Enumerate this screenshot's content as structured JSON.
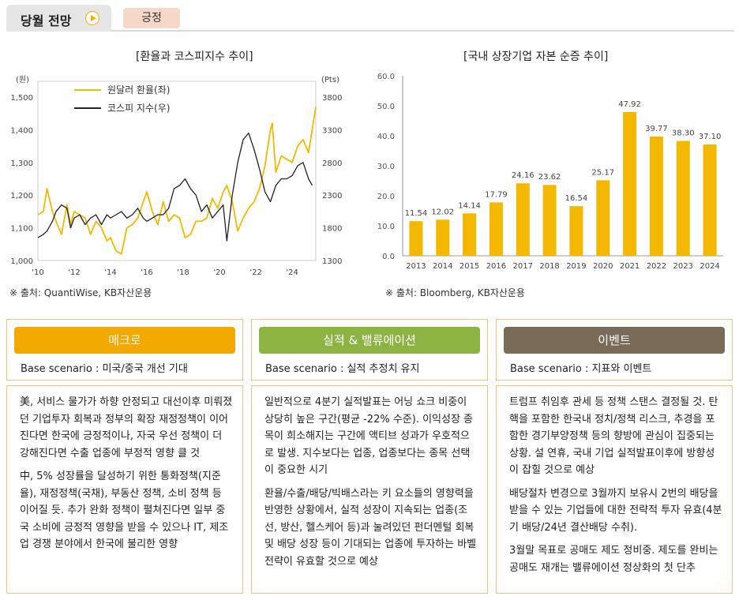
{
  "tabs": {
    "main_label": "당월 전망",
    "tag_label": "긍정"
  },
  "left_chart": {
    "title": "[환율과 코스피지수 추이]",
    "left_unit": "(원)",
    "right_unit": "(Pts)",
    "source": "※ 출처: QuantiWise, KB자산운용"
  },
  "right_chart": {
    "title": "[국내 상장기업 자본 순증 추이]",
    "source": "※ 출처: Bloomberg, KB자산운용"
  },
  "chart_data": [
    {
      "type": "line",
      "title": "[환율과 코스피지수 추이]",
      "x_ticks": [
        "'10",
        "'12",
        "'14",
        "'16",
        "'18",
        "'20",
        "'22",
        "'24"
      ],
      "x_range": [
        2010,
        2025.3
      ],
      "y_left": {
        "unit": "(원)",
        "range": [
          1000,
          1500
        ],
        "ticks": [
          "1,000",
          "1,100",
          "1,200",
          "1,300",
          "1,400",
          "1,500"
        ]
      },
      "y_right": {
        "unit": "(Pts)",
        "range": [
          1300,
          3800
        ],
        "ticks": [
          "1300",
          "1800",
          "2300",
          "2800",
          "3300",
          "3800"
        ]
      },
      "grid": false,
      "legend": "top-left",
      "series": [
        {
          "name": "원달러 환율(좌)",
          "axis": "left",
          "color": "#f5b800",
          "x": [
            2010.0,
            2010.3,
            2010.5,
            2010.8,
            2011.0,
            2011.3,
            2011.6,
            2011.8,
            2012.0,
            2012.3,
            2012.6,
            2012.9,
            2013.2,
            2013.5,
            2013.8,
            2014.0,
            2014.3,
            2014.6,
            2014.9,
            2015.2,
            2015.5,
            2015.8,
            2016.0,
            2016.3,
            2016.6,
            2016.9,
            2017.2,
            2017.5,
            2017.8,
            2018.1,
            2018.4,
            2018.7,
            2019.0,
            2019.3,
            2019.6,
            2019.9,
            2020.2,
            2020.4,
            2020.7,
            2021.0,
            2021.3,
            2021.6,
            2021.9,
            2022.2,
            2022.5,
            2022.8,
            2022.9,
            2023.1,
            2023.4,
            2023.7,
            2024.0,
            2024.3,
            2024.6,
            2024.9,
            2025.1,
            2025.3
          ],
          "values": [
            1140,
            1150,
            1220,
            1150,
            1120,
            1080,
            1170,
            1110,
            1150,
            1140,
            1130,
            1080,
            1120,
            1100,
            1060,
            1070,
            1030,
            1020,
            1100,
            1110,
            1130,
            1180,
            1210,
            1150,
            1110,
            1180,
            1120,
            1140,
            1130,
            1070,
            1080,
            1120,
            1120,
            1130,
            1190,
            1160,
            1210,
            1230,
            1180,
            1090,
            1130,
            1160,
            1180,
            1220,
            1290,
            1400,
            1420,
            1270,
            1320,
            1310,
            1300,
            1350,
            1370,
            1330,
            1400,
            1470
          ]
        },
        {
          "name": "코스피 지수(우)",
          "axis": "right",
          "color": "#222222",
          "x": [
            2010.0,
            2010.3,
            2010.5,
            2010.8,
            2011.0,
            2011.3,
            2011.6,
            2011.8,
            2012.0,
            2012.3,
            2012.6,
            2012.9,
            2013.2,
            2013.5,
            2013.8,
            2014.0,
            2014.3,
            2014.6,
            2014.9,
            2015.2,
            2015.5,
            2015.8,
            2016.0,
            2016.3,
            2016.6,
            2016.9,
            2017.2,
            2017.5,
            2017.8,
            2018.1,
            2018.4,
            2018.7,
            2019.0,
            2019.3,
            2019.6,
            2019.9,
            2020.2,
            2020.4,
            2020.7,
            2021.0,
            2021.3,
            2021.6,
            2021.9,
            2022.2,
            2022.5,
            2022.8,
            2023.1,
            2023.4,
            2023.7,
            2024.0,
            2024.3,
            2024.6,
            2024.9,
            2025.1
          ],
          "values": [
            1650,
            1700,
            1750,
            1900,
            2050,
            2150,
            2100,
            1800,
            1950,
            2000,
            1850,
            1950,
            2000,
            1850,
            2000,
            1950,
            2000,
            2050,
            1950,
            2000,
            2100,
            1950,
            1900,
            1950,
            2000,
            2000,
            2100,
            2400,
            2450,
            2550,
            2400,
            2300,
            2050,
            2150,
            1950,
            2050,
            2150,
            1600,
            2300,
            2800,
            3150,
            3250,
            3000,
            2700,
            2350,
            2200,
            2450,
            2550,
            2550,
            2600,
            2750,
            2800,
            2550,
            2450
          ]
        }
      ]
    },
    {
      "type": "bar",
      "title": "[국내 상장기업 자본 순증 추이]",
      "categories": [
        "2013",
        "2014",
        "2015",
        "2016",
        "2017",
        "2018",
        "2019",
        "2020",
        "2021",
        "2022",
        "2023",
        "2024"
      ],
      "values": [
        11.54,
        12.02,
        14.14,
        17.79,
        24.16,
        23.62,
        16.54,
        25.17,
        47.92,
        39.77,
        38.3,
        37.1
      ],
      "labels": [
        "11.54",
        "12.02",
        "14.14",
        "17.79",
        "24.16",
        "23.62",
        "16.54",
        "25.17",
        "47.92",
        "39.77",
        "38.30",
        "37.10"
      ],
      "ylim": [
        0,
        60
      ],
      "y_ticks": [
        "0.0",
        "10.0",
        "20.0",
        "30.0",
        "40.0",
        "50.0",
        "60.0"
      ],
      "color": "#f5b800",
      "grid": false
    }
  ],
  "cards": [
    {
      "title": "매크로",
      "color": "#f2a900",
      "scenario": "Base scenario : 미국/중국 개선 기대",
      "paragraphs": [
        "美, 서비스 물가가 하향 안정되고 대선이후 미뤄졌던 기업투자 회복과 정부의 확장 재정정책이 이어진다면 한국에 긍정적이나, 자국 우선 정책이 더 강해진다면 수출 업종에 부정적 영향 클 것",
        "中, 5% 성장률을 달성하기 위한 통화정책(지준율), 재정정책(국채), 부동산 정책, 소비 정책 등 이어질 듯. 추가 완화 정책이 펼쳐진다면 일부 중국 소비에 긍정적 영향을 받을 수 있으나 IT, 제조업 경쟁 분야에서 한국에 불리한 영향"
      ]
    },
    {
      "title": "실적 & 밸류에이션",
      "color": "#8db443",
      "scenario": "Base scenario : 실적 추정치 유지",
      "paragraphs": [
        "일반적으로 4분기 실적발표는 어닝 쇼크 비중이 상당히 높은 구간(평균 -22% 수준). 이익성장 종목이 희소해지는 구간에 액티브 성과가 우호적으로 발생. 지수보다는 업종, 업종보다는 종목 선택이 중요한 시기",
        "환율/수출/배당/빅배스라는 키 요소들의 영향력을 반영한 상황에서, 실적 성장이 지속되는 업종(조선, 방산, 헬스케어 등)과 눌려있던 펀더멘털 회복 및 배당 성장 등이 기대되는 업종에 투자하는 바벨 전략이 유효할 것으로 예상"
      ]
    },
    {
      "title": "이벤트",
      "color": "#7a6a58",
      "scenario": "Base scenario : 지표와 이벤트",
      "paragraphs": [
        "트럼프 취임후 관세 등 정책 스탠스 결정될 것. 탄핵을 포함한 한국내 정치/정책 리스크, 추경을 포함한 경기부양정책 등의 향방에 관심이 집중되는 상황. 설 연휴, 국내 기업 실적발표이후에 방향성이 잡힐 것으로 예상",
        "배당절차 변경으로 3월까지 보유시 2번의 배당을 받을 수 있는 기업들에 대한 전략적 투자 유효(4분기 배당/24년 결산배당 수취).",
        "3월말 목표로 공매도 제도 정비중. 제도를 완비는 공매도 재개는 밸류에이션 정상화의 첫 단추"
      ]
    }
  ]
}
